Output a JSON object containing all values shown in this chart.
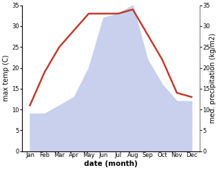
{
  "months": [
    "Jan",
    "Feb",
    "Mar",
    "Apr",
    "May",
    "Jun",
    "Jul",
    "Aug",
    "Sep",
    "Oct",
    "Nov",
    "Dec"
  ],
  "temperature": [
    11,
    19,
    25,
    29,
    33,
    33,
    33,
    34,
    28,
    22,
    14,
    13
  ],
  "precipitation": [
    9,
    9,
    11,
    13,
    20,
    32,
    33,
    35,
    22,
    16,
    12,
    12
  ],
  "temp_color": "#c0392b",
  "precip_fill_color": "#c8d0ee",
  "ylim": [
    0,
    35
  ],
  "ylabel_left": "max temp (C)",
  "ylabel_right": "med. precipitation (kg/m2)",
  "xlabel": "date (month)",
  "yticks": [
    0,
    5,
    10,
    15,
    20,
    25,
    30,
    35
  ],
  "background_color": "#ffffff",
  "line_width": 1.8,
  "label_fontsize": 7,
  "tick_fontsize": 6,
  "xlabel_fontsize": 7.5
}
